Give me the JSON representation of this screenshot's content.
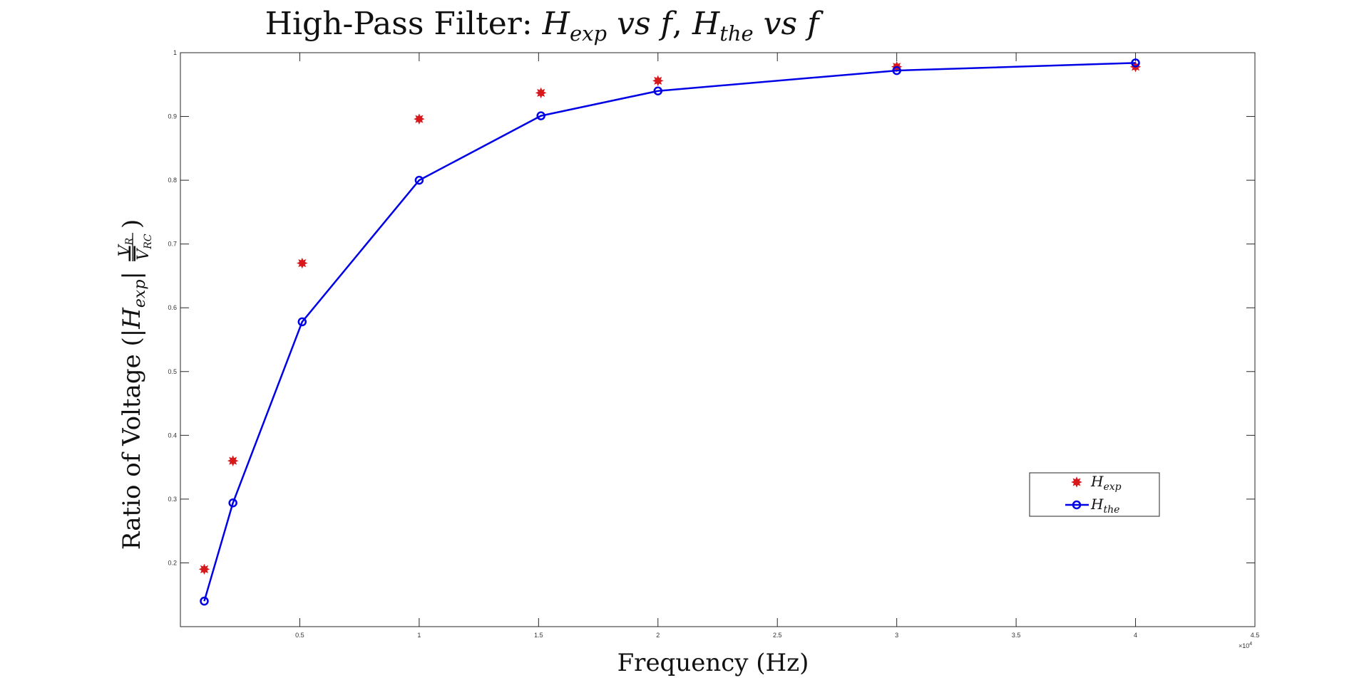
{
  "chart_data": {
    "type": "line",
    "title": {
      "prefix": "High-Pass Filter: ",
      "h1": "H",
      "h1_sub": "exp",
      "vs1": " vs ",
      "f1": "f",
      "sep": ", ",
      "h2": "H",
      "h2_sub": "the",
      "vs2": " vs ",
      "f2": "f"
    },
    "xlabel": "Frequency (Hz)",
    "ylabel": {
      "prefix": "Ratio of Voltage (|",
      "h": "H",
      "h_sub": "exp",
      "mid": "| = ",
      "num": "V",
      "num_sub": "R",
      "den": "V",
      "den_sub": "RC",
      "suffix": " )"
    },
    "x_exponent_label": "×10",
    "x_exponent": "4",
    "xlim": [
      0,
      45000
    ],
    "ylim": [
      0.1,
      1.0
    ],
    "xticks": [
      5000,
      10000,
      15000,
      20000,
      25000,
      30000,
      35000,
      40000,
      45000
    ],
    "xtick_labels": [
      "0.5",
      "1",
      "1.5",
      "2",
      "2.5",
      "3",
      "3.5",
      "4",
      "4.5"
    ],
    "yticks": [
      0.2,
      0.3,
      0.4,
      0.5,
      0.6,
      0.7,
      0.8,
      0.9,
      1.0
    ],
    "ytick_labels": [
      "0.2",
      "0.3",
      "0.4",
      "0.5",
      "0.6",
      "0.7",
      "0.8",
      "0.9",
      "1"
    ],
    "grid": false,
    "legend_position": "lower-right",
    "series": [
      {
        "name": "H",
        "name_sub": "exp",
        "marker": "star",
        "line": false,
        "color": "#d7191c",
        "x": [
          1000,
          2200,
          5100,
          10000,
          15100,
          20000,
          30000,
          40000
        ],
        "values": [
          0.19,
          0.36,
          0.67,
          0.896,
          0.937,
          0.956,
          0.978,
          0.978
        ]
      },
      {
        "name": "H",
        "name_sub": "the",
        "marker": "circle",
        "line": true,
        "color": "#0000e6",
        "x": [
          1000,
          2200,
          5100,
          10000,
          15100,
          20000,
          30000,
          40000
        ],
        "values": [
          0.14,
          0.294,
          0.578,
          0.8,
          0.901,
          0.94,
          0.972,
          0.984
        ]
      }
    ]
  }
}
